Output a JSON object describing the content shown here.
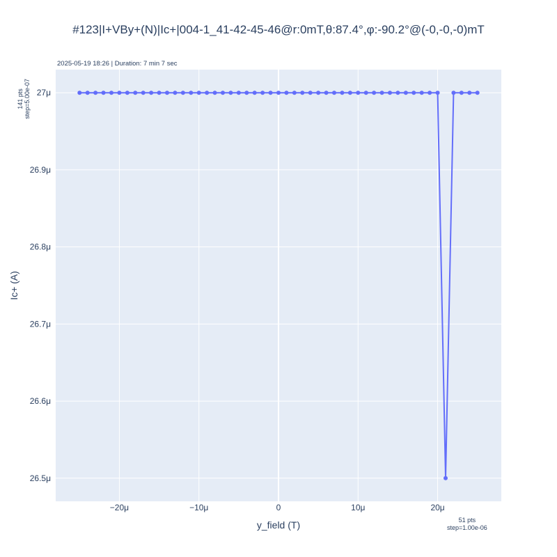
{
  "chart_data": {
    "type": "line",
    "title": "#123|I+VBy+(N)|Ic+|004-1_41-42-45-46@r:0mT,θ:87.4°,φ:-90.2°@(-0,-0,-0)mT",
    "subtitle": "2025-05-19 18:26 | Duration: 7 min 7 sec",
    "xlabel": "y_field (T)",
    "ylabel": "Ic+ (A)",
    "y_note": [
      "141 pts",
      "step=5.00e-07"
    ],
    "x_note": [
      "51 pts",
      "step=1.00e-06"
    ],
    "xlim": [
      -2.8e-05,
      2.8e-05
    ],
    "ylim": [
      2.647e-05,
      2.703e-05
    ],
    "x_ticks": [
      -2e-05,
      -1e-05,
      0,
      1e-05,
      2e-05
    ],
    "x_tick_labels": [
      "−20μ",
      "−10μ",
      "0",
      "10μ",
      "20μ"
    ],
    "y_ticks": [
      2.65e-05,
      2.66e-05,
      2.67e-05,
      2.68e-05,
      2.69e-05,
      2.7e-05
    ],
    "y_tick_labels": [
      "26.5μ",
      "26.6μ",
      "26.7μ",
      "26.8μ",
      "26.9μ",
      "27μ"
    ],
    "grid": true,
    "series": [
      {
        "color": "#636efa",
        "x": [
          -2.5e-05,
          -2.4e-05,
          -2.3e-05,
          -2.2e-05,
          -2.1e-05,
          -2e-05,
          -1.9e-05,
          -1.8e-05,
          -1.7e-05,
          -1.6e-05,
          -1.5e-05,
          -1.4e-05,
          -1.3e-05,
          -1.2e-05,
          -1.1e-05,
          -1e-05,
          -9e-06,
          -8e-06,
          -7e-06,
          -6e-06,
          -5e-06,
          -4e-06,
          -3e-06,
          -2e-06,
          -1e-06,
          0,
          1e-06,
          2e-06,
          3e-06,
          4e-06,
          5e-06,
          6e-06,
          7e-06,
          8e-06,
          9e-06,
          1e-05,
          1.1e-05,
          1.2e-05,
          1.3e-05,
          1.4e-05,
          1.5e-05,
          1.6e-05,
          1.7e-05,
          1.8e-05,
          1.9e-05,
          2e-05,
          2.1e-05,
          2.2e-05,
          2.3e-05,
          2.4e-05,
          2.5e-05
        ],
        "y": [
          2.7e-05,
          2.7e-05,
          2.7e-05,
          2.7e-05,
          2.7e-05,
          2.7e-05,
          2.7e-05,
          2.7e-05,
          2.7e-05,
          2.7e-05,
          2.7e-05,
          2.7e-05,
          2.7e-05,
          2.7e-05,
          2.7e-05,
          2.7e-05,
          2.7e-05,
          2.7e-05,
          2.7e-05,
          2.7e-05,
          2.7e-05,
          2.7e-05,
          2.7e-05,
          2.7e-05,
          2.7e-05,
          2.7e-05,
          2.7e-05,
          2.7e-05,
          2.7e-05,
          2.7e-05,
          2.7e-05,
          2.7e-05,
          2.7e-05,
          2.7e-05,
          2.7e-05,
          2.7e-05,
          2.7e-05,
          2.7e-05,
          2.7e-05,
          2.7e-05,
          2.7e-05,
          2.7e-05,
          2.7e-05,
          2.7e-05,
          2.7e-05,
          2.7e-05,
          2.65e-05,
          2.7e-05,
          2.7e-05,
          2.7e-05,
          2.7e-05
        ]
      }
    ]
  }
}
